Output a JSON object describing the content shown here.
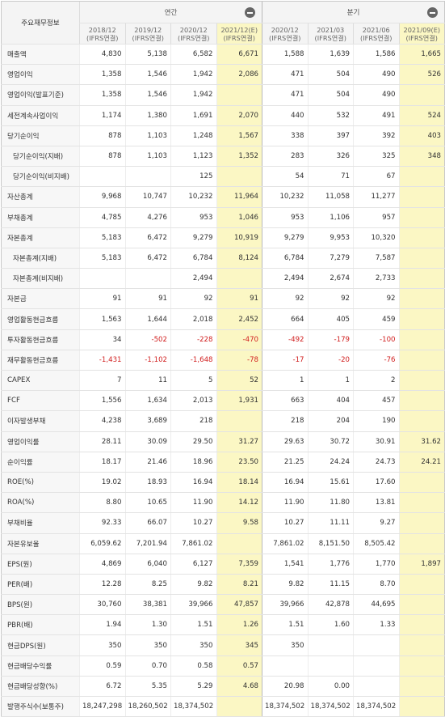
{
  "header": {
    "corner": "주요재무정보",
    "annual_label": "연간",
    "quarter_label": "분기",
    "annual_periods": [
      "2018/12\n(IFRS연결)",
      "2019/12\n(IFRS연결)",
      "2020/12\n(IFRS연결)",
      "2021/12(E)\n(IFRS연결)"
    ],
    "quarter_periods": [
      "2020/12\n(IFRS연결)",
      "2021/03\n(IFRS연결)",
      "2021/06\n(IFRS연결)",
      "2021/09(E)\n(IFRS연결)"
    ]
  },
  "rows": [
    {
      "label": "매출액",
      "indent": false,
      "values": [
        "4,830",
        "5,138",
        "6,582",
        "6,671",
        "1,588",
        "1,639",
        "1,586",
        "1,665"
      ]
    },
    {
      "label": "영업이익",
      "indent": false,
      "values": [
        "1,358",
        "1,546",
        "1,942",
        "2,086",
        "471",
        "504",
        "490",
        "526"
      ]
    },
    {
      "label": "영업이익(발표기준)",
      "indent": false,
      "values": [
        "1,358",
        "1,546",
        "1,942",
        "",
        "471",
        "504",
        "490",
        ""
      ]
    },
    {
      "label": "세전계속사업이익",
      "indent": false,
      "values": [
        "1,174",
        "1,380",
        "1,691",
        "2,070",
        "440",
        "532",
        "491",
        "524"
      ]
    },
    {
      "label": "당기순이익",
      "indent": false,
      "values": [
        "878",
        "1,103",
        "1,248",
        "1,567",
        "338",
        "397",
        "392",
        "403"
      ]
    },
    {
      "label": "당기순이익(지배)",
      "indent": true,
      "values": [
        "878",
        "1,103",
        "1,123",
        "1,352",
        "283",
        "326",
        "325",
        "348"
      ]
    },
    {
      "label": "당기순이익(비지배)",
      "indent": true,
      "values": [
        "",
        "",
        "125",
        "",
        "54",
        "71",
        "67",
        ""
      ]
    },
    {
      "label": "자산총계",
      "indent": false,
      "values": [
        "9,968",
        "10,747",
        "10,232",
        "11,964",
        "10,232",
        "11,058",
        "11,277",
        ""
      ]
    },
    {
      "label": "부채총계",
      "indent": false,
      "values": [
        "4,785",
        "4,276",
        "953",
        "1,046",
        "953",
        "1,106",
        "957",
        ""
      ]
    },
    {
      "label": "자본총계",
      "indent": false,
      "values": [
        "5,183",
        "6,472",
        "9,279",
        "10,919",
        "9,279",
        "9,953",
        "10,320",
        ""
      ]
    },
    {
      "label": "자본총계(지배)",
      "indent": true,
      "values": [
        "5,183",
        "6,472",
        "6,784",
        "8,124",
        "6,784",
        "7,279",
        "7,587",
        ""
      ]
    },
    {
      "label": "자본총계(비지배)",
      "indent": true,
      "values": [
        "",
        "",
        "2,494",
        "",
        "2,494",
        "2,674",
        "2,733",
        ""
      ]
    },
    {
      "label": "자본금",
      "indent": false,
      "values": [
        "91",
        "91",
        "92",
        "91",
        "92",
        "92",
        "92",
        ""
      ]
    },
    {
      "label": "영업활동현금흐름",
      "indent": false,
      "values": [
        "1,563",
        "1,644",
        "2,018",
        "2,452",
        "664",
        "405",
        "459",
        ""
      ]
    },
    {
      "label": "투자활동현금흐름",
      "indent": false,
      "values": [
        "34",
        "-502",
        "-228",
        "-470",
        "-492",
        "-179",
        "-100",
        ""
      ]
    },
    {
      "label": "재무활동현금흐름",
      "indent": false,
      "values": [
        "-1,431",
        "-1,102",
        "-1,648",
        "-78",
        "-17",
        "-20",
        "-76",
        ""
      ]
    },
    {
      "label": "CAPEX",
      "indent": false,
      "values": [
        "7",
        "11",
        "5",
        "52",
        "1",
        "1",
        "2",
        ""
      ]
    },
    {
      "label": "FCF",
      "indent": false,
      "values": [
        "1,556",
        "1,634",
        "2,013",
        "1,931",
        "663",
        "404",
        "457",
        ""
      ]
    },
    {
      "label": "이자발생부채",
      "indent": false,
      "values": [
        "4,238",
        "3,689",
        "218",
        "",
        "218",
        "204",
        "190",
        ""
      ]
    },
    {
      "label": "영업이익률",
      "indent": false,
      "values": [
        "28.11",
        "30.09",
        "29.50",
        "31.27",
        "29.63",
        "30.72",
        "30.91",
        "31.62"
      ]
    },
    {
      "label": "순이익률",
      "indent": false,
      "values": [
        "18.17",
        "21.46",
        "18.96",
        "23.50",
        "21.25",
        "24.24",
        "24.73",
        "24.21"
      ]
    },
    {
      "label": "ROE(%)",
      "indent": false,
      "values": [
        "19.02",
        "18.93",
        "16.94",
        "18.14",
        "16.94",
        "15.61",
        "17.60",
        ""
      ]
    },
    {
      "label": "ROA(%)",
      "indent": false,
      "values": [
        "8.80",
        "10.65",
        "11.90",
        "14.12",
        "11.90",
        "11.80",
        "13.81",
        ""
      ]
    },
    {
      "label": "부채비율",
      "indent": false,
      "values": [
        "92.33",
        "66.07",
        "10.27",
        "9.58",
        "10.27",
        "11.11",
        "9.27",
        ""
      ]
    },
    {
      "label": "자본유보율",
      "indent": false,
      "values": [
        "6,059.62",
        "7,201.94",
        "7,861.02",
        "",
        "7,861.02",
        "8,151.50",
        "8,505.42",
        ""
      ]
    },
    {
      "label": "EPS(원)",
      "indent": false,
      "values": [
        "4,869",
        "6,040",
        "6,127",
        "7,359",
        "1,541",
        "1,776",
        "1,770",
        "1,897"
      ]
    },
    {
      "label": "PER(배)",
      "indent": false,
      "values": [
        "12.28",
        "8.25",
        "9.82",
        "8.21",
        "9.82",
        "11.15",
        "8.70",
        ""
      ]
    },
    {
      "label": "BPS(원)",
      "indent": false,
      "values": [
        "30,760",
        "38,381",
        "39,966",
        "47,857",
        "39,966",
        "42,878",
        "44,695",
        ""
      ]
    },
    {
      "label": "PBR(배)",
      "indent": false,
      "values": [
        "1.94",
        "1.30",
        "1.51",
        "1.26",
        "1.51",
        "1.60",
        "1.33",
        ""
      ]
    },
    {
      "label": "현금DPS(원)",
      "indent": false,
      "values": [
        "350",
        "350",
        "350",
        "345",
        "350",
        "",
        "",
        ""
      ]
    },
    {
      "label": "현금배당수익률",
      "indent": false,
      "values": [
        "0.59",
        "0.70",
        "0.58",
        "0.57",
        "",
        "",
        "",
        ""
      ]
    },
    {
      "label": "현금배당성향(%)",
      "indent": false,
      "values": [
        "6.72",
        "5.35",
        "5.29",
        "4.68",
        "20.98",
        "0.00",
        "",
        ""
      ]
    },
    {
      "label": "발행주식수(보통주)",
      "indent": false,
      "values": [
        "18,247,298",
        "18,260,502",
        "18,374,502",
        "",
        "18,374,502",
        "18,374,502",
        "18,374,502",
        ""
      ]
    }
  ],
  "colors": {
    "estimate_bg": "#fbf7c4",
    "negative_text": "#d11f1f",
    "header_bg": "#f4f4f4",
    "label_bg": "#f7f7f7"
  },
  "icons": {
    "annual_collapse": "minus-circle-icon",
    "quarter_collapse": "minus-circle-icon"
  }
}
